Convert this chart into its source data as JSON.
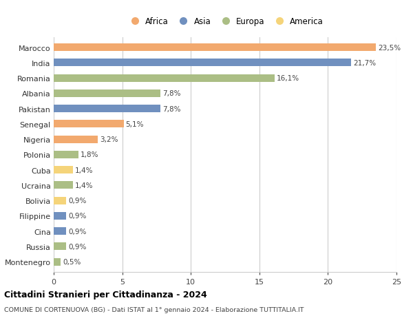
{
  "countries": [
    "Montenegro",
    "Russia",
    "Cina",
    "Filippine",
    "Bolivia",
    "Ucraina",
    "Cuba",
    "Polonia",
    "Nigeria",
    "Senegal",
    "Pakistan",
    "Albania",
    "Romania",
    "India",
    "Marocco"
  ],
  "values": [
    0.5,
    0.9,
    0.9,
    0.9,
    0.9,
    1.4,
    1.4,
    1.8,
    3.2,
    5.1,
    7.8,
    7.8,
    16.1,
    21.7,
    23.5
  ],
  "labels": [
    "0,5%",
    "0,9%",
    "0,9%",
    "0,9%",
    "0,9%",
    "1,4%",
    "1,4%",
    "1,8%",
    "3,2%",
    "5,1%",
    "7,8%",
    "7,8%",
    "16,1%",
    "21,7%",
    "23,5%"
  ],
  "continents": [
    "Europa",
    "Europa",
    "Asia",
    "Asia",
    "America",
    "Europa",
    "America",
    "Europa",
    "Africa",
    "Africa",
    "Asia",
    "Europa",
    "Europa",
    "Asia",
    "Africa"
  ],
  "continent_colors": {
    "Africa": "#F2A96E",
    "Asia": "#7090BF",
    "Europa": "#ABBE85",
    "America": "#F5D47A"
  },
  "legend_order": [
    "Africa",
    "Asia",
    "Europa",
    "America"
  ],
  "title": "Cittadini Stranieri per Cittadinanza - 2024",
  "subtitle": "COMUNE DI CORTENUOVA (BG) - Dati ISTAT al 1° gennaio 2024 - Elaborazione TUTTITALIA.IT",
  "xlim": [
    0,
    25
  ],
  "background_color": "#ffffff",
  "grid_color": "#cccccc",
  "bar_height": 0.5
}
